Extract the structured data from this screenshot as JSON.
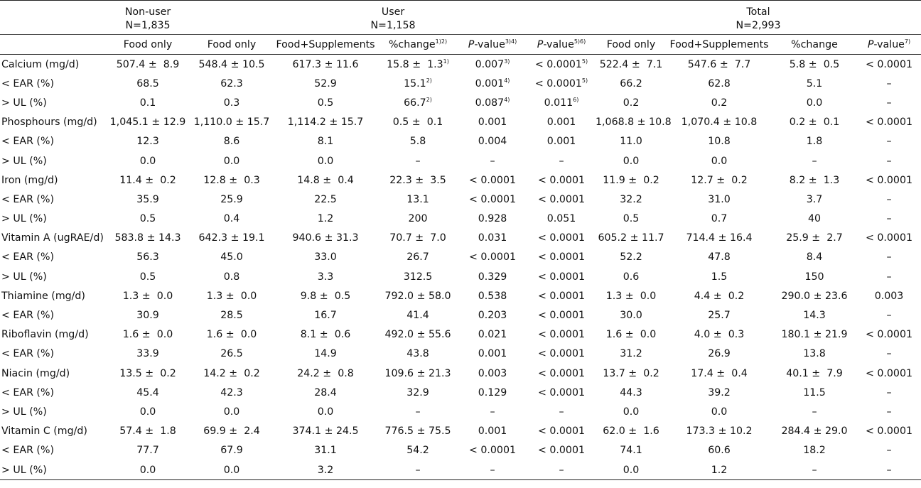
{
  "group_headers": {
    "nonuser": {
      "name": "Non-user",
      "n": "N=1,835"
    },
    "user": {
      "name": "User",
      "n": "N=1,158"
    },
    "total": {
      "name": "Total",
      "n": "N=2,993"
    }
  },
  "sub_headers": {
    "food_only_1": "Food only",
    "food_only_2": "Food only",
    "food_supp_1": "Food+Supplements",
    "pct_change_1": {
      "text": "%change",
      "sup": "1)2)"
    },
    "pvalue_1": {
      "italic": "P",
      "text": "-value",
      "sup": "3)4)"
    },
    "pvalue_2": {
      "italic": "P",
      "text": "-value",
      "sup": "5)6)"
    },
    "food_only_3": "Food only",
    "food_supp_2": "Food+Supplements",
    "pct_change_2": {
      "text": "%change",
      "sup": ""
    },
    "pvalue_3": {
      "italic": "P",
      "text": "-value",
      "sup": "7)"
    }
  },
  "rows": [
    {
      "label": "Calcium (mg/d)",
      "cells": [
        {
          "text": "507.4 ±  8.9"
        },
        {
          "text": "548.4 ± 10.5"
        },
        {
          "text": "617.3 ± 11.6"
        },
        {
          "text": "15.8 ±  1.3",
          "sup": "1)"
        },
        {
          "text": "0.007",
          "sup": "3)"
        },
        {
          "text": "< 0.0001",
          "sup": "5)"
        },
        {
          "text": "522.4 ±  7.1"
        },
        {
          "text": "547.6 ±  7.7"
        },
        {
          "text": "5.8 ±  0.5"
        },
        {
          "text": "< 0.0001"
        }
      ]
    },
    {
      "label": "< EAR (%)",
      "cells": [
        {
          "text": "68.5"
        },
        {
          "text": "62.3"
        },
        {
          "text": "52.9"
        },
        {
          "text": "15.1",
          "sup": "2)"
        },
        {
          "text": "0.001",
          "sup": "4)"
        },
        {
          "text": "< 0.0001",
          "sup": "5)"
        },
        {
          "text": "66.2"
        },
        {
          "text": "62.8"
        },
        {
          "text": "5.1"
        },
        {
          "text": "–"
        }
      ]
    },
    {
      "label": "> UL (%)",
      "cells": [
        {
          "text": "0.1"
        },
        {
          "text": "0.3"
        },
        {
          "text": "0.5"
        },
        {
          "text": "66.7",
          "sup": "2)"
        },
        {
          "text": "0.087",
          "sup": "4)"
        },
        {
          "text": "0.011",
          "sup": "6)"
        },
        {
          "text": "0.2"
        },
        {
          "text": "0.2"
        },
        {
          "text": "0.0"
        },
        {
          "text": "–"
        }
      ]
    },
    {
      "label": "Phosphours (mg/d)",
      "cells": [
        {
          "text": "1,045.1 ± 12.9"
        },
        {
          "text": "1,110.0 ± 15.7"
        },
        {
          "text": "1,114.2 ± 15.7"
        },
        {
          "text": "0.5 ±  0.1"
        },
        {
          "text": "0.001"
        },
        {
          "text": "0.001"
        },
        {
          "text": "1,068.8 ± 10.8"
        },
        {
          "text": "1,070.4 ± 10.8"
        },
        {
          "text": "0.2 ±  0.1"
        },
        {
          "text": "< 0.0001"
        }
      ]
    },
    {
      "label": "< EAR (%)",
      "cells": [
        {
          "text": "12.3"
        },
        {
          "text": "8.6"
        },
        {
          "text": "8.1"
        },
        {
          "text": "5.8"
        },
        {
          "text": "0.004"
        },
        {
          "text": "0.001"
        },
        {
          "text": "11.0"
        },
        {
          "text": "10.8"
        },
        {
          "text": "1.8"
        },
        {
          "text": "–"
        }
      ]
    },
    {
      "label": "> UL (%)",
      "cells": [
        {
          "text": "0.0"
        },
        {
          "text": "0.0"
        },
        {
          "text": "0.0"
        },
        {
          "text": "–"
        },
        {
          "text": "–"
        },
        {
          "text": "–"
        },
        {
          "text": "0.0"
        },
        {
          "text": "0.0"
        },
        {
          "text": "–"
        },
        {
          "text": "–"
        }
      ]
    },
    {
      "label": "Iron (mg/d)",
      "cells": [
        {
          "text": "11.4 ±  0.2"
        },
        {
          "text": "12.8 ±  0.3"
        },
        {
          "text": "14.8 ±  0.4"
        },
        {
          "text": "22.3 ±  3.5"
        },
        {
          "text": "< 0.0001"
        },
        {
          "text": "< 0.0001"
        },
        {
          "text": "11.9 ±  0.2"
        },
        {
          "text": "12.7 ±  0.2"
        },
        {
          "text": "8.2 ±  1.3"
        },
        {
          "text": "< 0.0001"
        }
      ]
    },
    {
      "label": "< EAR (%)",
      "cells": [
        {
          "text": "35.9"
        },
        {
          "text": "25.9"
        },
        {
          "text": "22.5"
        },
        {
          "text": "13.1"
        },
        {
          "text": "< 0.0001"
        },
        {
          "text": "< 0.0001"
        },
        {
          "text": "32.2"
        },
        {
          "text": "31.0"
        },
        {
          "text": "3.7"
        },
        {
          "text": "–"
        }
      ]
    },
    {
      "label": "> UL (%)",
      "cells": [
        {
          "text": "0.5"
        },
        {
          "text": "0.4"
        },
        {
          "text": "1.2"
        },
        {
          "text": "200"
        },
        {
          "text": "0.928"
        },
        {
          "text": "0.051"
        },
        {
          "text": "0.5"
        },
        {
          "text": "0.7"
        },
        {
          "text": "40"
        },
        {
          "text": "–"
        }
      ]
    },
    {
      "label": "Vitamin A (ugRAE/d)",
      "cells": [
        {
          "text": "583.8 ± 14.3"
        },
        {
          "text": "642.3 ± 19.1"
        },
        {
          "text": "940.6 ± 31.3"
        },
        {
          "text": "70.7 ±  7.0"
        },
        {
          "text": "0.031"
        },
        {
          "text": "< 0.0001"
        },
        {
          "text": "605.2 ± 11.7"
        },
        {
          "text": "714.4 ± 16.4"
        },
        {
          "text": "25.9 ±  2.7"
        },
        {
          "text": "< 0.0001"
        }
      ]
    },
    {
      "label": "< EAR (%)",
      "cells": [
        {
          "text": "56.3"
        },
        {
          "text": "45.0"
        },
        {
          "text": "33.0"
        },
        {
          "text": "26.7"
        },
        {
          "text": "< 0.0001"
        },
        {
          "text": "< 0.0001"
        },
        {
          "text": "52.2"
        },
        {
          "text": "47.8"
        },
        {
          "text": "8.4"
        },
        {
          "text": "–"
        }
      ]
    },
    {
      "label": "> UL (%)",
      "cells": [
        {
          "text": "0.5"
        },
        {
          "text": "0.8"
        },
        {
          "text": "3.3"
        },
        {
          "text": "312.5"
        },
        {
          "text": "0.329"
        },
        {
          "text": "< 0.0001"
        },
        {
          "text": "0.6"
        },
        {
          "text": "1.5"
        },
        {
          "text": "150"
        },
        {
          "text": "–"
        }
      ]
    },
    {
      "label": "Thiamine (mg/d)",
      "cells": [
        {
          "text": "1.3 ±  0.0"
        },
        {
          "text": "1.3 ±  0.0"
        },
        {
          "text": "9.8 ±  0.5"
        },
        {
          "text": "792.0 ± 58.0"
        },
        {
          "text": "0.538"
        },
        {
          "text": "< 0.0001"
        },
        {
          "text": "1.3 ±  0.0"
        },
        {
          "text": "4.4 ±  0.2"
        },
        {
          "text": "290.0 ± 23.6"
        },
        {
          "text": "0.003"
        }
      ]
    },
    {
      "label": "< EAR (%)",
      "cells": [
        {
          "text": "30.9"
        },
        {
          "text": "28.5"
        },
        {
          "text": "16.7"
        },
        {
          "text": "41.4"
        },
        {
          "text": "0.203"
        },
        {
          "text": "< 0.0001"
        },
        {
          "text": "30.0"
        },
        {
          "text": "25.7"
        },
        {
          "text": "14.3"
        },
        {
          "text": "–"
        }
      ]
    },
    {
      "label": "Riboflavin (mg/d)",
      "cells": [
        {
          "text": "1.6 ±  0.0"
        },
        {
          "text": "1.6 ±  0.0"
        },
        {
          "text": "8.1 ±  0.6"
        },
        {
          "text": "492.0 ± 55.6"
        },
        {
          "text": "0.021"
        },
        {
          "text": "< 0.0001"
        },
        {
          "text": "1.6 ±  0.0"
        },
        {
          "text": "4.0 ±  0.3"
        },
        {
          "text": "180.1 ± 21.9"
        },
        {
          "text": "< 0.0001"
        }
      ]
    },
    {
      "label": "< EAR (%)",
      "cells": [
        {
          "text": "33.9"
        },
        {
          "text": "26.5"
        },
        {
          "text": "14.9"
        },
        {
          "text": "43.8"
        },
        {
          "text": "0.001"
        },
        {
          "text": "< 0.0001"
        },
        {
          "text": "31.2"
        },
        {
          "text": "26.9"
        },
        {
          "text": "13.8"
        },
        {
          "text": "–"
        }
      ]
    },
    {
      "label": "Niacin (mg/d)",
      "cells": [
        {
          "text": "13.5 ±  0.2"
        },
        {
          "text": "14.2 ±  0.2"
        },
        {
          "text": "24.2 ±  0.8"
        },
        {
          "text": "109.6 ± 21.3"
        },
        {
          "text": "0.003"
        },
        {
          "text": "< 0.0001"
        },
        {
          "text": "13.7 ±  0.2"
        },
        {
          "text": "17.4 ±  0.4"
        },
        {
          "text": "40.1 ±  7.9"
        },
        {
          "text": "< 0.0001"
        }
      ]
    },
    {
      "label": "< EAR (%)",
      "cells": [
        {
          "text": "45.4"
        },
        {
          "text": "42.3"
        },
        {
          "text": "28.4"
        },
        {
          "text": "32.9"
        },
        {
          "text": "0.129"
        },
        {
          "text": "< 0.0001"
        },
        {
          "text": "44.3"
        },
        {
          "text": "39.2"
        },
        {
          "text": "11.5"
        },
        {
          "text": "–"
        }
      ]
    },
    {
      "label": "> UL (%)",
      "cells": [
        {
          "text": "0.0"
        },
        {
          "text": "0.0"
        },
        {
          "text": "0.0"
        },
        {
          "text": "–"
        },
        {
          "text": "–"
        },
        {
          "text": "–"
        },
        {
          "text": "0.0"
        },
        {
          "text": "0.0"
        },
        {
          "text": "–"
        },
        {
          "text": "–"
        }
      ]
    },
    {
      "label": "Vitamin C (mg/d)",
      "cells": [
        {
          "text": "57.4 ±  1.8"
        },
        {
          "text": "69.9 ±  2.4"
        },
        {
          "text": "374.1 ± 24.5"
        },
        {
          "text": "776.5 ± 75.5"
        },
        {
          "text": "0.001"
        },
        {
          "text": "< 0.0001"
        },
        {
          "text": "62.0 ±  1.6"
        },
        {
          "text": "173.3 ± 10.2"
        },
        {
          "text": "284.4 ± 29.0"
        },
        {
          "text": "< 0.0001"
        }
      ]
    },
    {
      "label": "< EAR (%)",
      "cells": [
        {
          "text": "77.7"
        },
        {
          "text": "67.9"
        },
        {
          "text": "31.1"
        },
        {
          "text": "54.2"
        },
        {
          "text": "< 0.0001"
        },
        {
          "text": "< 0.0001"
        },
        {
          "text": "74.1"
        },
        {
          "text": "60.6"
        },
        {
          "text": "18.2"
        },
        {
          "text": "–"
        }
      ]
    },
    {
      "label": "> UL (%)",
      "cells": [
        {
          "text": "0.0"
        },
        {
          "text": "0.0"
        },
        {
          "text": "3.2"
        },
        {
          "text": "–"
        },
        {
          "text": "–"
        },
        {
          "text": "–"
        },
        {
          "text": "0.0"
        },
        {
          "text": "1.2"
        },
        {
          "text": "–"
        },
        {
          "text": "–"
        }
      ]
    }
  ]
}
